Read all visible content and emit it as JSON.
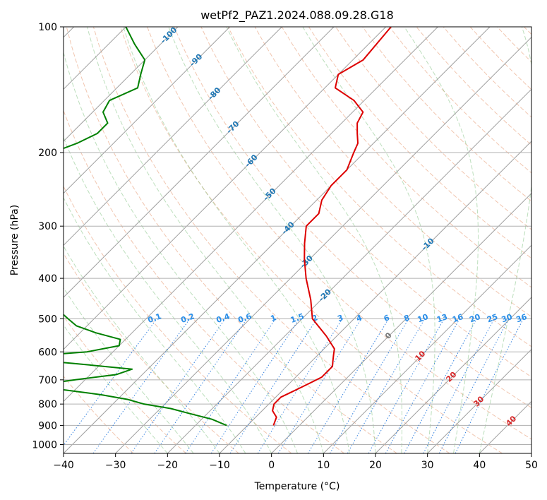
{
  "chart_data": {
    "type": "skew-t",
    "title": "wetPf2_PAZ1.2024.088.09.28.G18",
    "xlabel": "Temperature (°C)",
    "ylabel": "Pressure (hPa)",
    "xlim": [
      -40,
      50
    ],
    "ylim": [
      1050,
      100
    ],
    "y_scale": "log",
    "grid": true,
    "x_ticks": [
      -40,
      -30,
      -20,
      -10,
      0,
      10,
      20,
      30,
      40,
      50
    ],
    "y_ticks": [
      1000,
      900,
      800,
      700,
      600,
      500,
      400,
      300,
      200,
      100
    ],
    "isotherm_labels": [
      {
        "value": -100,
        "label": "-100"
      },
      {
        "value": -90,
        "label": "-90"
      },
      {
        "value": -80,
        "label": "-80"
      },
      {
        "value": -70,
        "label": "-70"
      },
      {
        "value": -60,
        "label": "-60"
      },
      {
        "value": -50,
        "label": "-50"
      },
      {
        "value": -40,
        "label": "-40"
      },
      {
        "value": -30,
        "label": "-30"
      },
      {
        "value": -20,
        "label": "-20"
      },
      {
        "value": -10,
        "label": "-10"
      },
      {
        "value": 0,
        "label": "0"
      },
      {
        "value": 10,
        "label": "10"
      },
      {
        "value": 20,
        "label": "20"
      },
      {
        "value": 30,
        "label": "30"
      },
      {
        "value": 40,
        "label": "40"
      }
    ],
    "mixing_ratio_labels": [
      "0.1",
      "0.2",
      "0.4",
      "0.6",
      "1",
      "1.5",
      "2",
      "3",
      "4",
      "6",
      "8",
      "10",
      "13",
      "16",
      "20",
      "25",
      "30",
      "36"
    ],
    "series": [
      {
        "color": "#dd0000",
        "p": [
          100,
          120,
          130,
          140,
          150,
          160,
          170,
          180,
          190,
          200,
          220,
          240,
          260,
          280,
          300,
          330,
          360,
          400,
          450,
          500,
          550,
          590,
          610,
          630,
          650,
          670,
          690,
          710,
          730,
          750,
          770,
          800,
          830,
          860,
          900
        ],
        "t": [
          -59,
          -58,
          -60,
          -58,
          -52,
          -48,
          -47,
          -45,
          -43,
          -42,
          -40,
          -40,
          -39,
          -37,
          -37,
          -34,
          -31,
          -27,
          -22,
          -18,
          -12,
          -8,
          -7,
          -6,
          -5,
          -5,
          -5,
          -6,
          -7,
          -8,
          -9,
          -9,
          -8,
          -6,
          -5
        ]
      },
      {
        "color": "#008000",
        "p": [
          100,
          110,
          120,
          130,
          140,
          150,
          160,
          170,
          180,
          190,
          200,
          210,
          220,
          230,
          240,
          250,
          260,
          270,
          280,
          290,
          300,
          320,
          340,
          360,
          380,
          400,
          420,
          440,
          460,
          480,
          500,
          520,
          540,
          560,
          580,
          600,
          620,
          640,
          660,
          680,
          700,
          720,
          740,
          760,
          780,
          800,
          820,
          840,
          870,
          900
        ],
        "t": [
          -110,
          -105,
          -100,
          -98,
          -96,
          -99,
          -98,
          -95,
          -95,
          -97,
          -100,
          -100,
          -97,
          -94,
          -92,
          -92,
          -93,
          -95,
          -96,
          -96,
          -95,
          -92,
          -89,
          -84,
          -79,
          -74,
          -73,
          -72,
          -71,
          -68,
          -65,
          -62,
          -57,
          -51,
          -50,
          -55,
          -69,
          -55,
          -43,
          -45,
          -52,
          -58,
          -52,
          -44,
          -38,
          -34,
          -28,
          -24,
          -18,
          -14
        ]
      }
    ]
  }
}
